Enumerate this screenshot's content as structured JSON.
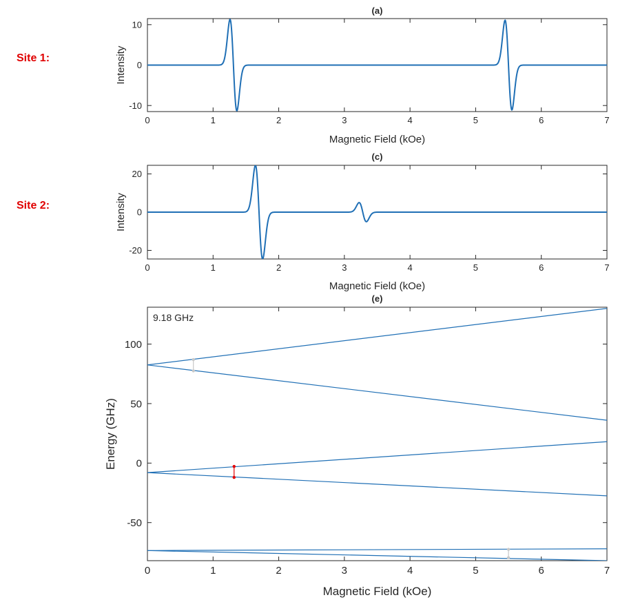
{
  "site_labels": [
    "Site 1:",
    "Site 2:"
  ],
  "colors": {
    "site_label": "#e00000",
    "trace": "#1f6fb5",
    "axis": "#262626",
    "transition_active": "#e00000",
    "transition_faint": "#c8c8c8"
  },
  "chart_data": [
    {
      "type": "line",
      "title": "(a)",
      "xlabel": "Magnetic Field (kOe)",
      "ylabel": "Intensity",
      "xlim": [
        0,
        7
      ],
      "ylim": [
        -11.5,
        11.5
      ],
      "xticks": [
        0,
        1,
        2,
        3,
        4,
        5,
        6,
        7
      ],
      "yticks": [
        10,
        0,
        -10
      ],
      "grid": false,
      "series": [
        {
          "peaks": [
            {
              "center": 1.31,
              "amplitude": 11.3,
              "width": 0.052
            },
            {
              "center": 5.5,
              "amplitude": 11.1,
              "width": 0.052
            }
          ]
        }
      ]
    },
    {
      "type": "line",
      "title": "(c)",
      "xlabel": "Magnetic Field (kOe)",
      "ylabel": "Intensity",
      "xlim": [
        0,
        7
      ],
      "ylim": [
        -24.5,
        24.5
      ],
      "xticks": [
        0,
        1,
        2,
        3,
        4,
        5,
        6,
        7
      ],
      "yticks": [
        20,
        0,
        -20
      ],
      "grid": false,
      "series": [
        {
          "peaks": [
            {
              "center": 1.7,
              "amplitude": 24.5,
              "width": 0.055
            },
            {
              "center": 3.28,
              "amplitude": 5.0,
              "width": 0.055
            }
          ]
        }
      ]
    },
    {
      "type": "line",
      "title": "(e)",
      "annotation": "9.18 GHz",
      "xlabel": "Magnetic Field (kOe)",
      "ylabel": "Energy (GHz)",
      "xlim": [
        0,
        7
      ],
      "ylim": [
        -82,
        131
      ],
      "xticks": [
        0,
        1,
        2,
        3,
        4,
        5,
        6,
        7
      ],
      "yticks": [
        100,
        50,
        0,
        -50
      ],
      "grid": false,
      "series": [
        {
          "x": [
            0,
            7
          ],
          "y": [
            82.5,
            130
          ]
        },
        {
          "x": [
            0,
            7
          ],
          "y": [
            82.5,
            36
          ]
        },
        {
          "x": [
            0,
            7
          ],
          "y": [
            -8,
            18
          ]
        },
        {
          "x": [
            0,
            7
          ],
          "y": [
            -8,
            -27.5
          ]
        },
        {
          "x": [
            0,
            7
          ],
          "y": [
            -73.5,
            -72
          ]
        },
        {
          "x": [
            0,
            7
          ],
          "y": [
            -73.5,
            -82
          ]
        }
      ],
      "transitions": [
        {
          "x": 0.7,
          "y1": 77.5,
          "y2": 87,
          "style": "faint"
        },
        {
          "x": 1.32,
          "y1": -12,
          "y2": -2.8,
          "style": "active"
        },
        {
          "x": 5.5,
          "y1": -79.5,
          "y2": -72.5,
          "style": "faint"
        }
      ]
    }
  ]
}
